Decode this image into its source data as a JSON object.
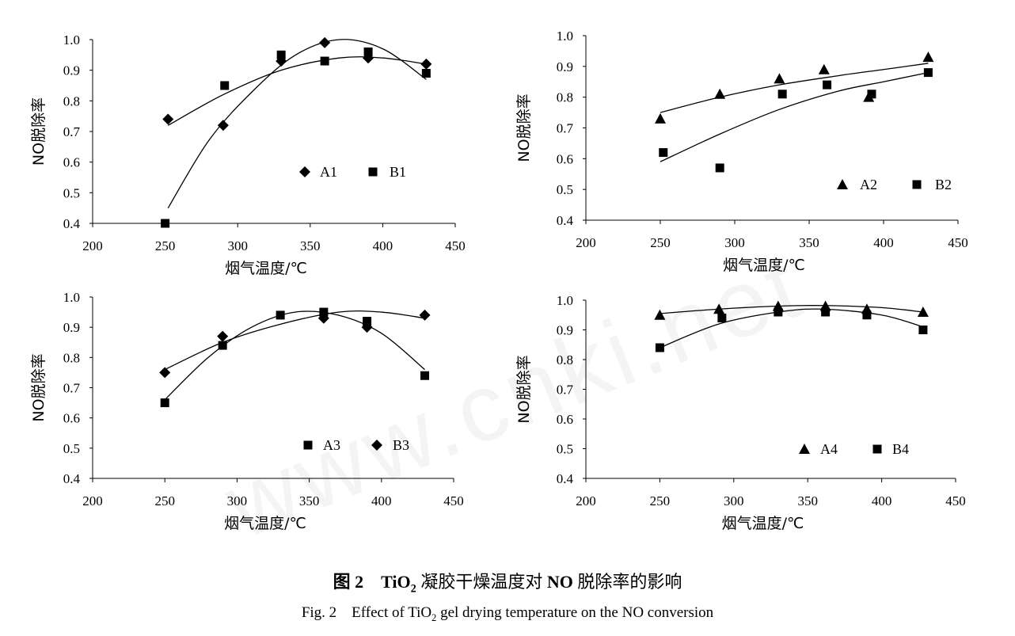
{
  "caption": {
    "zh_fig": "图 2",
    "zh_pre": "TiO",
    "zh_sub": "2",
    "zh_mid": " 凝胶干燥温度对 ",
    "zh_bold2": "NO",
    "zh_post": " 脱除率的影响",
    "en_pre": "Fig. 2    Effect of TiO",
    "en_sub": "2",
    "en_post": " gel drying temperature on the NO conversion"
  },
  "watermark": "www.cnki.net",
  "chart_data": [
    {
      "type": "scatter",
      "xlabel": "烟气温度/℃",
      "ylabel": "NO脱除率",
      "xlim": [
        200,
        450
      ],
      "ylim": [
        0.4,
        1.0
      ],
      "xticks": [
        "200",
        "250",
        "300",
        "350",
        "400",
        "450"
      ],
      "yticks": [
        "0.4",
        "0.5",
        "0.6",
        "0.7",
        "0.8",
        "0.9",
        "1.0"
      ],
      "legend_position": "lower-right",
      "series": [
        {
          "name": "A1",
          "marker": "diamond",
          "x": [
            252,
            290,
            330,
            360,
            390,
            430
          ],
          "y": [
            0.74,
            0.72,
            0.93,
            0.99,
            0.94,
            0.92
          ],
          "fit": {
            "x": [
              252,
              280,
              310,
              340,
              370,
              400,
              430
            ],
            "y": [
              0.45,
              0.67,
              0.83,
              0.95,
              1.0,
              0.97,
              0.87
            ]
          }
        },
        {
          "name": "B1",
          "marker": "square",
          "x": [
            250,
            291,
            330,
            360,
            390,
            430
          ],
          "y": [
            0.4,
            0.85,
            0.95,
            0.93,
            0.96,
            0.89
          ],
          "fit": {
            "x": [
              252,
              290,
              330,
              370,
              400,
              430
            ],
            "y": [
              0.72,
              0.82,
              0.9,
              0.94,
              0.94,
              0.92
            ]
          }
        }
      ]
    },
    {
      "type": "scatter",
      "xlabel": "烟气温度/℃",
      "ylabel": "NO脱除率",
      "xlim": [
        200,
        450
      ],
      "ylim": [
        0.4,
        1.0
      ],
      "xticks": [
        "200",
        "250",
        "300",
        "350",
        "400",
        "450"
      ],
      "yticks": [
        "0.4",
        "0.5",
        "0.6",
        "0.7",
        "0.8",
        "0.9",
        "1.0"
      ],
      "legend_position": "lower-right",
      "series": [
        {
          "name": "A2",
          "marker": "triangle",
          "x": [
            250,
            290,
            330,
            360,
            390,
            430
          ],
          "y": [
            0.73,
            0.81,
            0.86,
            0.89,
            0.8,
            0.93
          ],
          "fit": {
            "x": [
              250,
              290,
              330,
              370,
              400,
              430
            ],
            "y": [
              0.75,
              0.8,
              0.84,
              0.87,
              0.89,
              0.91
            ]
          }
        },
        {
          "name": "B2",
          "marker": "square",
          "x": [
            252,
            290,
            332,
            362,
            392,
            430
          ],
          "y": [
            0.62,
            0.57,
            0.81,
            0.84,
            0.81,
            0.88
          ],
          "fit": {
            "x": [
              250,
              290,
              330,
              370,
              400,
              430
            ],
            "y": [
              0.59,
              0.68,
              0.76,
              0.82,
              0.85,
              0.88
            ]
          }
        }
      ]
    },
    {
      "type": "scatter",
      "xlabel": "烟气温度/℃",
      "ylabel": "NO脱除率",
      "xlim": [
        200,
        450
      ],
      "ylim": [
        0.4,
        1.0
      ],
      "xticks": [
        "200",
        "250",
        "300",
        "350",
        "400",
        "450"
      ],
      "yticks": [
        "0.4",
        "0.5",
        "0.6",
        "0.7",
        "0.8",
        "0.9",
        "1.0"
      ],
      "legend_position": "lower-right",
      "series": [
        {
          "name": "A3",
          "marker": "square",
          "x": [
            250,
            290,
            330,
            360,
            390,
            430
          ],
          "y": [
            0.65,
            0.84,
            0.94,
            0.95,
            0.92,
            0.74
          ],
          "fit": {
            "x": [
              250,
              280,
              310,
              340,
              370,
              400,
              430
            ],
            "y": [
              0.66,
              0.8,
              0.9,
              0.95,
              0.94,
              0.88,
              0.76
            ]
          }
        },
        {
          "name": "B3",
          "marker": "diamond",
          "x": [
            250,
            290,
            360,
            390,
            430
          ],
          "y": [
            0.75,
            0.87,
            0.93,
            0.9,
            0.94
          ],
          "fit": {
            "x": [
              250,
              290,
              330,
              370,
              400,
              430
            ],
            "y": [
              0.76,
              0.85,
              0.91,
              0.95,
              0.95,
              0.93
            ]
          }
        }
      ]
    },
    {
      "type": "scatter",
      "xlabel": "烟气温度/℃",
      "ylabel": "NO脱除率",
      "xlim": [
        200,
        450
      ],
      "ylim": [
        0.4,
        1.0
      ],
      "xticks": [
        "200",
        "250",
        "300",
        "350",
        "400",
        "450"
      ],
      "yticks": [
        "0.4",
        "0.5",
        "0.6",
        "0.7",
        "0.8",
        "0.9",
        "1.0"
      ],
      "legend_position": "lower-right",
      "series": [
        {
          "name": "A4",
          "marker": "triangle",
          "x": [
            250,
            290,
            330,
            362,
            390,
            428
          ],
          "y": [
            0.95,
            0.97,
            0.98,
            0.98,
            0.97,
            0.96
          ],
          "fit": {
            "x": [
              250,
              290,
              330,
              360,
              400,
              428
            ],
            "y": [
              0.955,
              0.97,
              0.98,
              0.982,
              0.975,
              0.96
            ]
          }
        },
        {
          "name": "B4",
          "marker": "square",
          "x": [
            250,
            292,
            330,
            362,
            390,
            428
          ],
          "y": [
            0.84,
            0.94,
            0.96,
            0.96,
            0.95,
            0.9
          ],
          "fit": {
            "x": [
              250,
              290,
              330,
              360,
              400,
              428
            ],
            "y": [
              0.84,
              0.92,
              0.96,
              0.97,
              0.95,
              0.91
            ]
          }
        }
      ]
    }
  ]
}
